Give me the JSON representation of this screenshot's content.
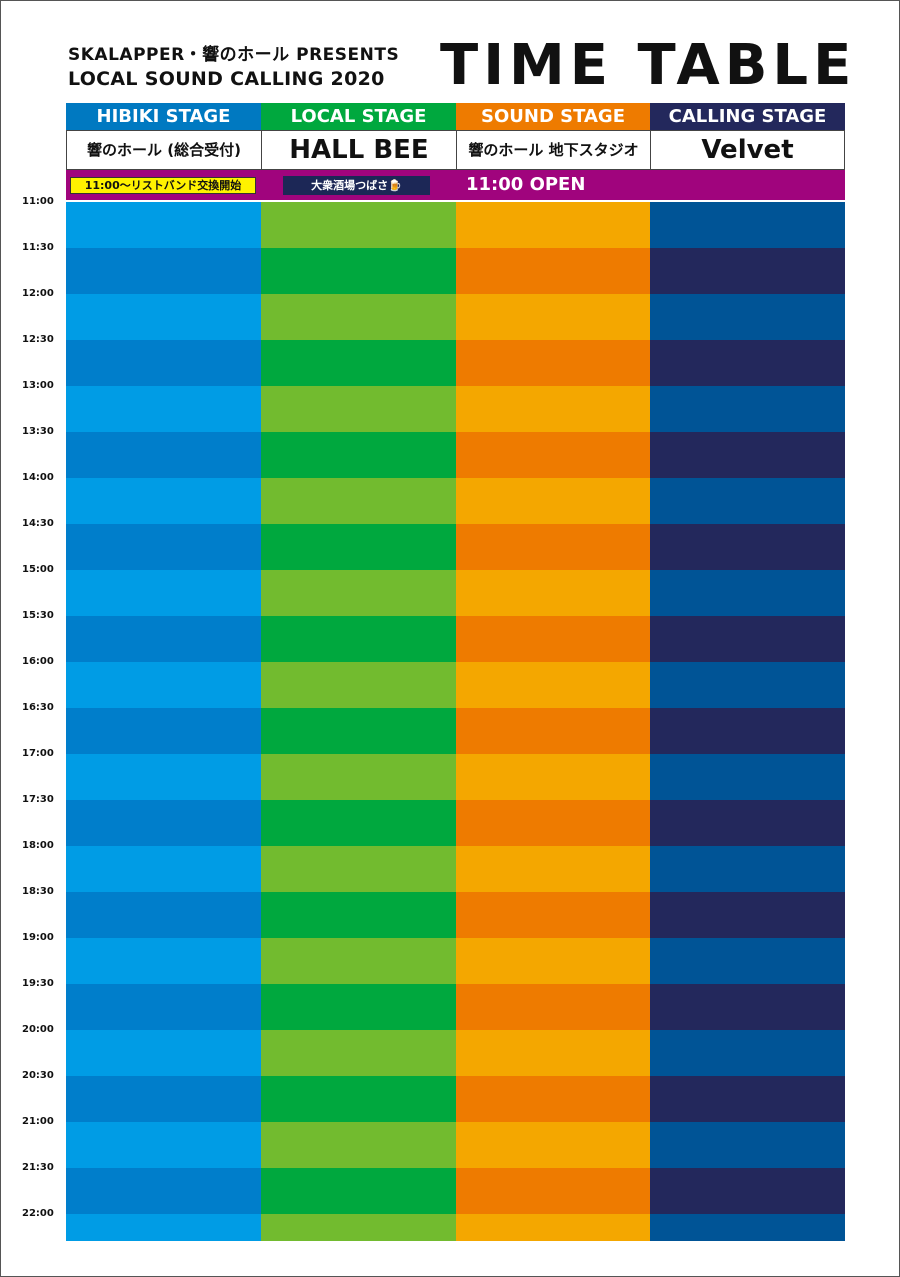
{
  "header": {
    "line1": "SKALAPPER・響のホール PRESENTS",
    "line2": "LOCAL SOUND CALLING 2020",
    "main_title": "TIME TABLE"
  },
  "stages": [
    {
      "name": "HIBIKI STAGE",
      "venue": "響のホール (総合受付)",
      "header_color": "#0079c1",
      "color_a": "#009ce5",
      "color_b": "#007ecb"
    },
    {
      "name": "LOCAL STAGE",
      "venue": "HALL BEE",
      "header_color": "#00a83e",
      "color_a": "#72bb2f",
      "color_b": "#00a83e"
    },
    {
      "name": "SOUND STAGE",
      "venue": "響のホール 地下スタジオ",
      "header_color": "#ee7b00",
      "color_a": "#f4a700",
      "color_b": "#ee7b00"
    },
    {
      "name": "CALLING STAGE",
      "venue": "Velvet",
      "header_color": "#23285c",
      "color_a": "#005496",
      "color_b": "#23285c"
    }
  ],
  "notices": {
    "wristband": "11:00〜リストバンド交換開始",
    "izakaya": "大衆酒場つばさ🍺",
    "open": "11:00 OPEN"
  },
  "times": [
    "11:00",
    "11:30",
    "12:00",
    "12:30",
    "13:00",
    "13:30",
    "14:00",
    "14:30",
    "15:00",
    "15:30",
    "16:00",
    "16:30",
    "17:00",
    "17:30",
    "18:00",
    "18:30",
    "19:00",
    "19:30",
    "20:00",
    "20:30",
    "21:00",
    "21:30",
    "22:00"
  ],
  "colors": {
    "notice_bar": "#a0047d",
    "wristband_bg": "#fff200",
    "izakaya_bg": "#1c2756"
  }
}
